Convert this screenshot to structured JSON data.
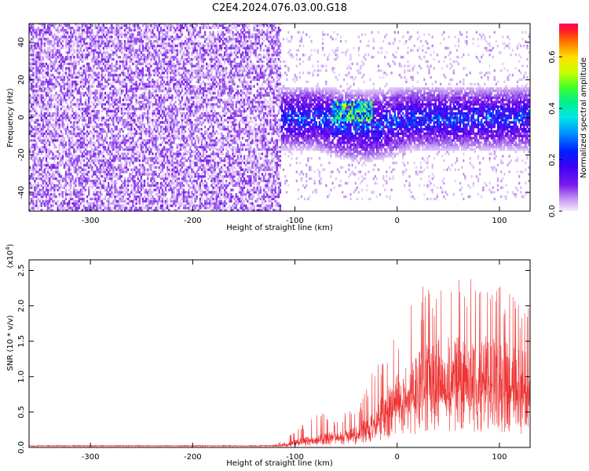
{
  "title": "C2E4.2024.076.03.00.G18",
  "colors": {
    "snr_line": "#ee3333",
    "cmap": [
      "#f4ecfc",
      "#d8b8f6",
      "#9a58ec",
      "#7010e8",
      "#5a00f0",
      "#1010ff",
      "#0050ff",
      "#00c8ff",
      "#00f0c0",
      "#40ff40",
      "#c8ff00",
      "#ffe000",
      "#ff9000",
      "#ff3000",
      "#ff0060"
    ]
  },
  "chart_data": [
    {
      "type": "heatmap",
      "xlabel": "Height of straight line (km)",
      "ylabel": "Frequency (Hz)",
      "xlim": [
        -360,
        130
      ],
      "ylim": [
        -50,
        50
      ],
      "xticks": [
        -300,
        -200,
        -100,
        0,
        100
      ],
      "yticks": [
        -40,
        -20,
        0,
        20,
        40
      ],
      "colorbar": {
        "label": "Normalized spectral amplitude",
        "range": [
          0.0,
          0.73
        ],
        "ticks": [
          "0.0",
          "0.2",
          "0.4",
          "0.6"
        ]
      },
      "regions": [
        {
          "x": [
            -360,
            -115
          ],
          "freq": [
            -50,
            50
          ],
          "description_level": 0.08
        },
        {
          "x": [
            -115,
            130
          ],
          "freq": [
            -18,
            16
          ],
          "description_level": 0.22
        },
        {
          "x": [
            -65,
            -25
          ],
          "freq": [
            -2,
            8
          ],
          "description_level": 0.45
        }
      ],
      "peak": {
        "x": -50,
        "freq": 5,
        "amplitude": 0.73
      }
    },
    {
      "type": "line",
      "xlabel": "Height of straight line (km)",
      "ylabel": "SNR (10 * v/v)",
      "scale_label": "(x10",
      "scale_exp": "4",
      "scale_close": ")",
      "xlim": [
        -360,
        130
      ],
      "ylim": [
        0,
        2.65
      ],
      "xticks": [
        -300,
        -200,
        -100,
        0,
        100
      ],
      "yticks": [
        "0.0",
        "0.5",
        "1.0",
        "1.5",
        "2.0",
        "2.5"
      ],
      "envelope": {
        "x": [
          -360,
          -200,
          -120,
          -110,
          -100,
          -90,
          -80,
          -70,
          -60,
          -50,
          -40,
          -30,
          -20,
          -10,
          0,
          10,
          20,
          30,
          40,
          50,
          60,
          70,
          80,
          90,
          100,
          110,
          120,
          130
        ],
        "baseline": [
          0.02,
          0.02,
          0.025,
          0.04,
          0.07,
          0.1,
          0.12,
          0.14,
          0.15,
          0.17,
          0.2,
          0.28,
          0.4,
          0.55,
          0.7,
          0.8,
          0.9,
          1.0,
          1.05,
          1.05,
          1.05,
          1.05,
          1.05,
          1.05,
          1.0,
          1.0,
          0.95,
          0.9
        ],
        "peaks": [
          0.03,
          0.03,
          0.05,
          0.1,
          0.25,
          0.35,
          0.45,
          0.55,
          0.4,
          0.5,
          0.55,
          0.85,
          1.3,
          1.5,
          1.75,
          2.0,
          2.1,
          2.45,
          2.2,
          2.5,
          2.6,
          2.6,
          2.2,
          2.5,
          2.35,
          2.2,
          2.1,
          2.3
        ]
      }
    }
  ]
}
